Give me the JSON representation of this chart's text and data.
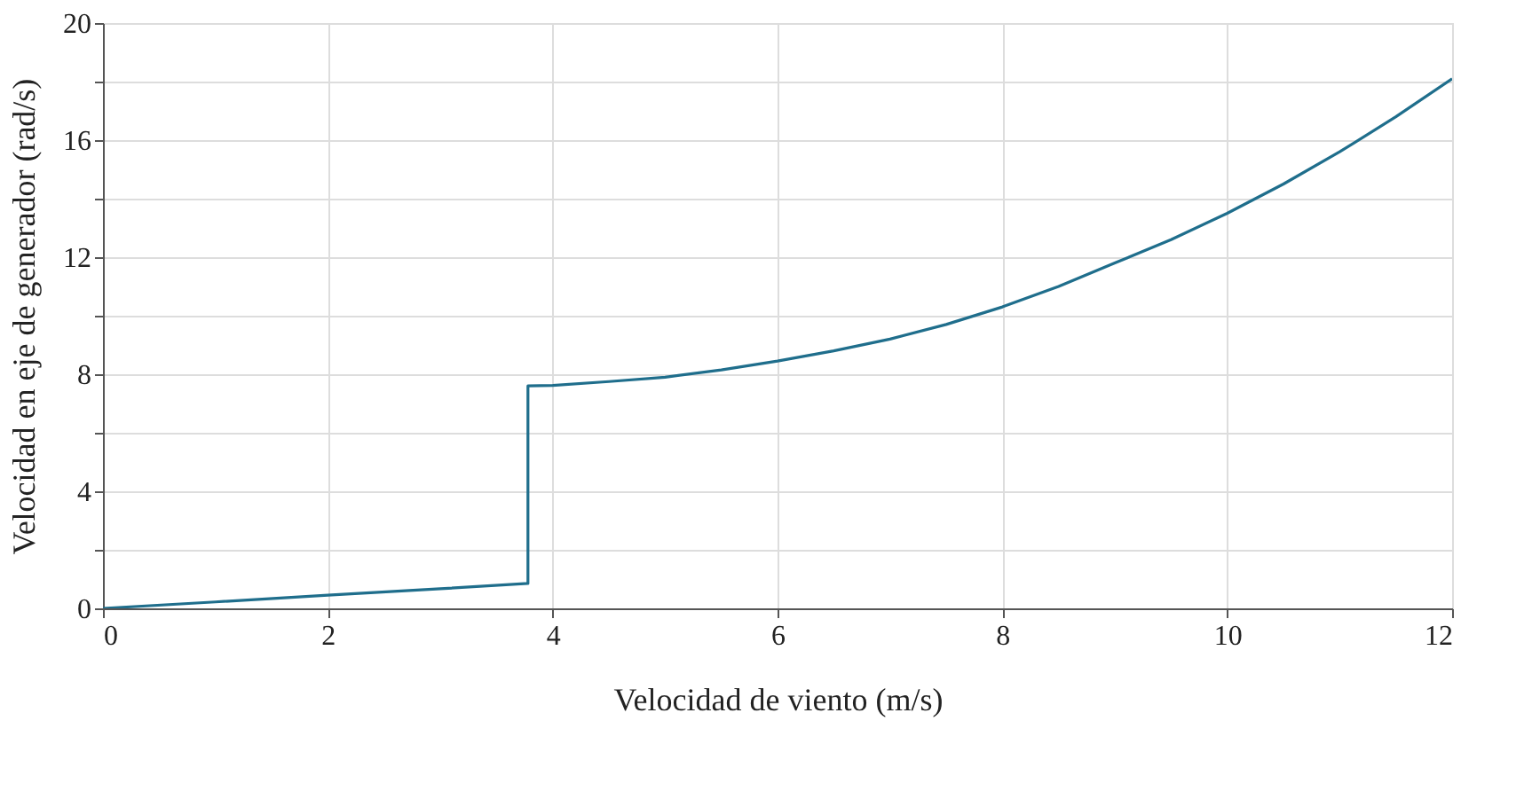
{
  "chart_data": {
    "type": "line",
    "xlabel": "Velocidad de viento  (m/s)",
    "ylabel": "Velocidad en eje de generador  (rad/s)",
    "x": [
      0,
      1,
      2,
      3,
      3.78,
      3.78,
      4,
      4.5,
      5,
      5.5,
      6,
      6.5,
      7,
      7.5,
      8,
      8.5,
      9,
      9.5,
      10,
      10.5,
      11,
      11.5,
      12
    ],
    "series": [
      {
        "color": "#1f6e8c",
        "values": [
          0,
          0.22,
          0.45,
          0.67,
          0.85,
          7.6,
          7.62,
          7.75,
          7.9,
          8.15,
          8.45,
          8.8,
          9.2,
          9.7,
          10.3,
          11.0,
          11.8,
          12.6,
          13.5,
          14.5,
          15.6,
          16.8,
          18.1
        ]
      }
    ],
    "xlim": [
      0,
      12
    ],
    "xticks": [
      0,
      2,
      4,
      6,
      8,
      10,
      12
    ],
    "ylim": [
      0,
      20
    ],
    "yticks": [
      0,
      {
        "value": 2,
        "label": null
      },
      4,
      {
        "value": 6,
        "label": null
      },
      8,
      {
        "value": 10,
        "label": null
      },
      12,
      {
        "value": 14,
        "label": null
      },
      16,
      {
        "value": 18,
        "label": null
      },
      20
    ],
    "grid": true,
    "marker": "none",
    "line_style": "solid"
  }
}
